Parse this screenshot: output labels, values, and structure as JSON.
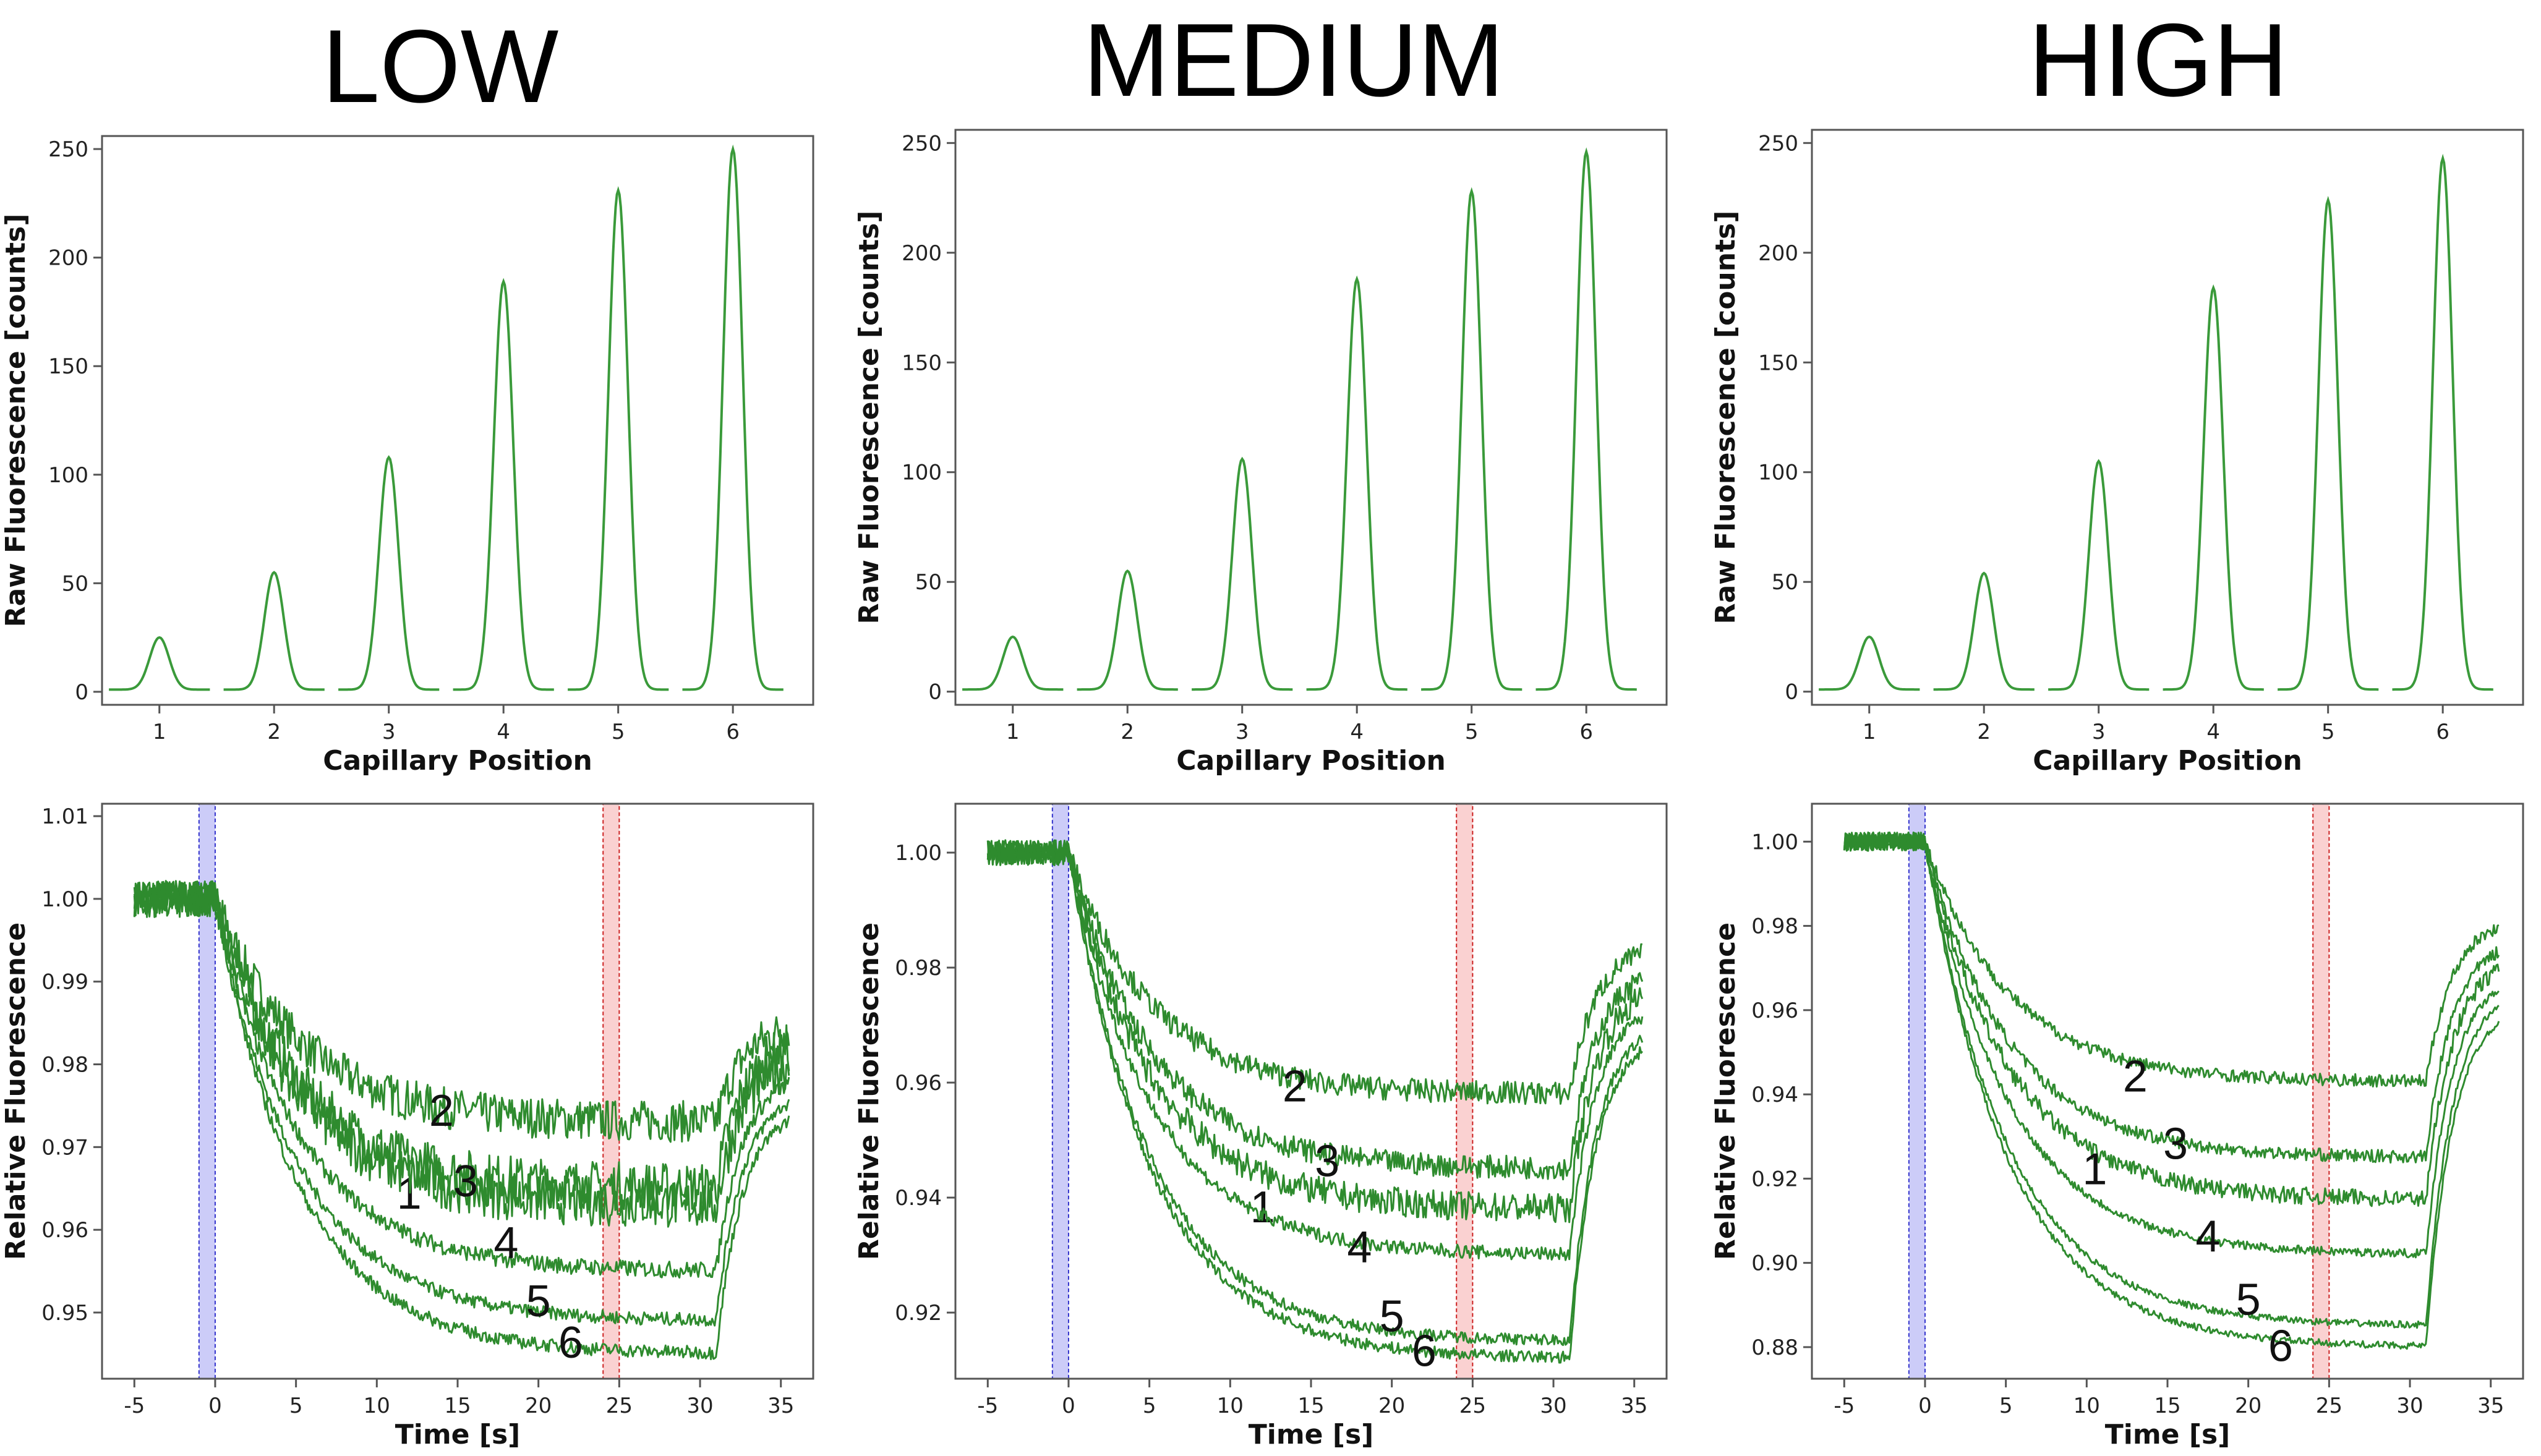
{
  "figure": {
    "columns": [
      "LOW",
      "MEDIUM",
      "HIGH"
    ]
  },
  "chart_data": [
    {
      "panel": "LOW-raw",
      "type": "line",
      "title": "LOW",
      "xlabel": "Capillary Position",
      "ylabel": "Raw Fluorescence [counts]",
      "xlim": [
        0.5,
        6.7
      ],
      "ylim": [
        -6,
        256
      ],
      "xticks": [
        1,
        2,
        3,
        4,
        5,
        6
      ],
      "yticks": [
        0,
        50,
        100,
        150,
        200,
        250
      ],
      "peaks": [
        {
          "x": 1,
          "y": 24
        },
        {
          "x": 2,
          "y": 54
        },
        {
          "x": 3,
          "y": 107
        },
        {
          "x": 4,
          "y": 188
        },
        {
          "x": 5,
          "y": 230
        },
        {
          "x": 6,
          "y": 249
        }
      ]
    },
    {
      "panel": "MEDIUM-raw",
      "type": "line",
      "title": "MEDIUM",
      "xlabel": "Capillary Position",
      "ylabel": "Raw Fluorescence [counts]",
      "xlim": [
        0.5,
        6.7
      ],
      "ylim": [
        -6,
        256
      ],
      "xticks": [
        1,
        2,
        3,
        4,
        5,
        6
      ],
      "yticks": [
        0,
        50,
        100,
        150,
        200,
        250
      ],
      "peaks": [
        {
          "x": 1,
          "y": 24
        },
        {
          "x": 2,
          "y": 54
        },
        {
          "x": 3,
          "y": 105
        },
        {
          "x": 4,
          "y": 187
        },
        {
          "x": 5,
          "y": 227
        },
        {
          "x": 6,
          "y": 245
        }
      ]
    },
    {
      "panel": "HIGH-raw",
      "type": "line",
      "title": "HIGH",
      "xlabel": "Capillary Position",
      "ylabel": "Raw Fluorescence [counts]",
      "xlim": [
        0.5,
        6.7
      ],
      "ylim": [
        -6,
        256
      ],
      "xticks": [
        1,
        2,
        3,
        4,
        5,
        6
      ],
      "yticks": [
        0,
        50,
        100,
        150,
        200,
        250
      ],
      "peaks": [
        {
          "x": 1,
          "y": 24
        },
        {
          "x": 2,
          "y": 53
        },
        {
          "x": 3,
          "y": 104
        },
        {
          "x": 4,
          "y": 183
        },
        {
          "x": 5,
          "y": 223
        },
        {
          "x": 6,
          "y": 242
        }
      ]
    },
    {
      "panel": "LOW-time",
      "type": "line",
      "xlabel": "Time [s]",
      "ylabel": "Relative Fluorescence",
      "xlim": [
        -7,
        37
      ],
      "ylim": [
        0.942,
        1.0115
      ],
      "xticks": [
        -5,
        0,
        5,
        10,
        15,
        20,
        25,
        30,
        35
      ],
      "yticks": [
        0.95,
        0.96,
        0.97,
        0.98,
        0.99,
        1.0,
        1.01
      ],
      "ytick_labels": [
        "0.95",
        "0.96",
        "0.97",
        "0.98",
        "0.99",
        "1.00",
        "1.01"
      ],
      "cold_region": [
        -1,
        0
      ],
      "hot_region": [
        24,
        25
      ],
      "series": [
        {
          "name": "2",
          "plateau": 0.973,
          "recovered": 0.985,
          "noise": 0.0025,
          "label_at": [
            14,
            0.9745
          ]
        },
        {
          "name": "1",
          "plateau": 0.965,
          "recovered": 0.983,
          "noise": 0.003,
          "label_at": [
            12,
            0.9645
          ]
        },
        {
          "name": "3",
          "plateau": 0.963,
          "recovered": 0.981,
          "noise": 0.003,
          "label_at": [
            15.5,
            0.966
          ]
        },
        {
          "name": "4",
          "plateau": 0.955,
          "recovered": 0.979,
          "noise": 0.001,
          "label_at": [
            18,
            0.9585
          ]
        },
        {
          "name": "5",
          "plateau": 0.949,
          "recovered": 0.977,
          "noise": 0.0008,
          "label_at": [
            20,
            0.9515
          ]
        },
        {
          "name": "6",
          "plateau": 0.945,
          "recovered": 0.975,
          "noise": 0.0008,
          "label_at": [
            22,
            0.9465
          ]
        }
      ]
    },
    {
      "panel": "MEDIUM-time",
      "type": "line",
      "xlabel": "Time [s]",
      "ylabel": "Relative Fluorescence",
      "xlim": [
        -7,
        37
      ],
      "ylim": [
        0.9085,
        1.0085
      ],
      "xticks": [
        -5,
        0,
        5,
        10,
        15,
        20,
        25,
        30,
        35
      ],
      "yticks": [
        0.92,
        0.94,
        0.96,
        0.98,
        1.0
      ],
      "ytick_labels": [
        "0.92",
        "0.94",
        "0.96",
        "0.98",
        "1.00"
      ],
      "cold_region": [
        -1,
        0
      ],
      "hot_region": [
        24,
        25
      ],
      "series": [
        {
          "name": "2",
          "plateau": 0.958,
          "recovered": 0.984,
          "noise": 0.002,
          "label_at": [
            14,
            0.9595
          ]
        },
        {
          "name": "3",
          "plateau": 0.945,
          "recovered": 0.98,
          "noise": 0.002,
          "label_at": [
            16,
            0.9465
          ]
        },
        {
          "name": "1",
          "plateau": 0.938,
          "recovered": 0.977,
          "noise": 0.0025,
          "label_at": [
            12,
            0.9385
          ]
        },
        {
          "name": "4",
          "plateau": 0.93,
          "recovered": 0.974,
          "noise": 0.0012,
          "label_at": [
            18,
            0.9315
          ]
        },
        {
          "name": "5",
          "plateau": 0.915,
          "recovered": 0.971,
          "noise": 0.001,
          "label_at": [
            20,
            0.9195
          ]
        },
        {
          "name": "6",
          "plateau": 0.912,
          "recovered": 0.969,
          "noise": 0.001,
          "label_at": [
            22,
            0.9135
          ]
        }
      ]
    },
    {
      "panel": "HIGH-time",
      "type": "line",
      "xlabel": "Time [s]",
      "ylabel": "Relative Fluorescence",
      "xlim": [
        -7,
        37
      ],
      "ylim": [
        0.8725,
        1.009
      ],
      "xticks": [
        -5,
        0,
        5,
        10,
        15,
        20,
        25,
        30,
        35
      ],
      "yticks": [
        0.88,
        0.9,
        0.92,
        0.94,
        0.96,
        0.98,
        1.0
      ],
      "ytick_labels": [
        "0.88",
        "0.90",
        "0.92",
        "0.94",
        "0.96",
        "0.98",
        "1.00"
      ],
      "cold_region": [
        -1,
        0
      ],
      "hot_region": [
        24,
        25
      ],
      "series": [
        {
          "name": "2",
          "plateau": 0.943,
          "recovered": 0.982,
          "noise": 0.0015,
          "label_at": [
            13,
            0.9445
          ]
        },
        {
          "name": "3",
          "plateau": 0.925,
          "recovered": 0.977,
          "noise": 0.0015,
          "label_at": [
            15.5,
            0.9285
          ]
        },
        {
          "name": "1",
          "plateau": 0.915,
          "recovered": 0.973,
          "noise": 0.002,
          "label_at": [
            10.5,
            0.9225
          ]
        },
        {
          "name": "4",
          "plateau": 0.902,
          "recovered": 0.969,
          "noise": 0.001,
          "label_at": [
            17.5,
            0.9065
          ]
        },
        {
          "name": "5",
          "plateau": 0.885,
          "recovered": 0.966,
          "noise": 0.0008,
          "label_at": [
            20,
            0.8915
          ]
        },
        {
          "name": "6",
          "plateau": 0.88,
          "recovered": 0.962,
          "noise": 0.0008,
          "label_at": [
            22,
            0.8805
          ]
        }
      ]
    }
  ]
}
